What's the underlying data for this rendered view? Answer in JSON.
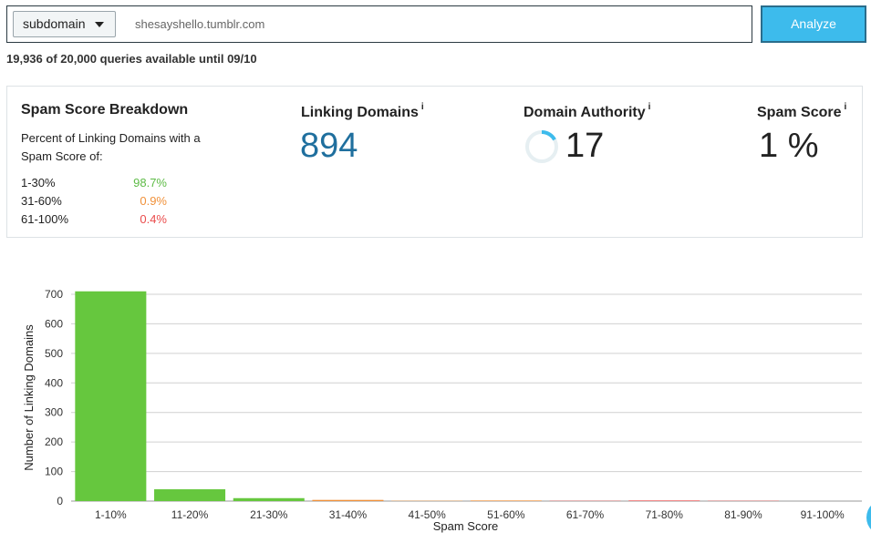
{
  "search": {
    "scope_selected": "subdomain",
    "query_value": "shesayshello.tumblr.com",
    "analyze_label": "Analyze"
  },
  "quota": "19,936 of 20,000 queries available until 09/10",
  "breakdown": {
    "title": "Spam Score Breakdown",
    "subtitle": "Percent of Linking Domains with a Spam Score of:",
    "rows": [
      {
        "range": "1-30%",
        "value": "98.7%",
        "color": "#5dbb46"
      },
      {
        "range": "31-60%",
        "value": "0.9%",
        "color": "#f0913a"
      },
      {
        "range": "61-100%",
        "value": "0.4%",
        "color": "#ea4c4c"
      }
    ]
  },
  "metrics": {
    "linking_domains": {
      "label": "Linking Domains",
      "info": "i",
      "value": "894"
    },
    "domain_authority": {
      "label": "Domain Authority",
      "info": "i",
      "value": "17",
      "gauge_fraction": 0.17
    },
    "spam_score": {
      "label": "Spam Score",
      "info": "i",
      "value": "1 %"
    }
  },
  "chart_data": {
    "type": "bar",
    "categories": [
      "1-10%",
      "11-20%",
      "21-30%",
      "31-40%",
      "41-50%",
      "51-60%",
      "61-70%",
      "71-80%",
      "81-90%",
      "91-100%"
    ],
    "values": [
      710,
      40,
      10,
      4,
      1,
      2,
      1,
      2,
      1,
      0
    ],
    "bar_colors": [
      "#66c73e",
      "#66c73e",
      "#66c73e",
      "#f0913a",
      "#f0913a",
      "#f0913a",
      "#ea4c4c",
      "#ea4c4c",
      "#ea4c4c",
      "#ea4c4c"
    ],
    "xlabel": "Spam Score",
    "ylabel": "Number of Linking Domains",
    "ylim": [
      0,
      700
    ],
    "yticks": [
      0,
      100,
      200,
      300,
      400,
      500,
      600,
      700
    ],
    "grid": true
  }
}
